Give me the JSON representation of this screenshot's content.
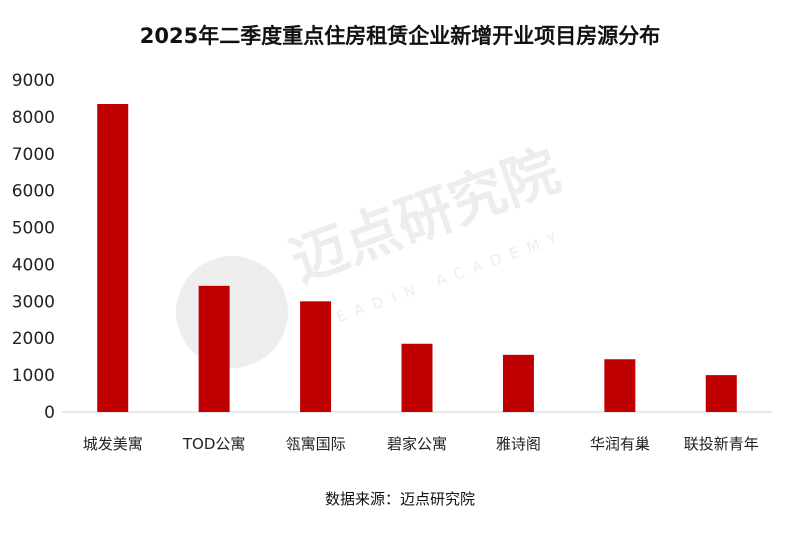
{
  "chart_data": {
    "type": "bar",
    "title": "2025年二季度重点住房租赁企业新增开业项目房源分布",
    "categories": [
      "城发美寓",
      "TOD公寓",
      "瓴寓国际",
      "碧家公寓",
      "雅诗阁",
      "华润有巢",
      "联投新青年"
    ],
    "values": [
      8350,
      3420,
      3000,
      1850,
      1550,
      1430,
      1000
    ],
    "ylim": [
      0,
      9000
    ],
    "yticks": [
      0,
      1000,
      2000,
      3000,
      4000,
      5000,
      6000,
      7000,
      8000,
      9000
    ],
    "xlabel": "",
    "ylabel": "",
    "grid": false,
    "bar_color": "#C00000"
  },
  "source": "数据来源：迈点研究院",
  "watermark": {
    "text": "迈点研究院",
    "subtext": "MEADIN ACADEMY"
  }
}
